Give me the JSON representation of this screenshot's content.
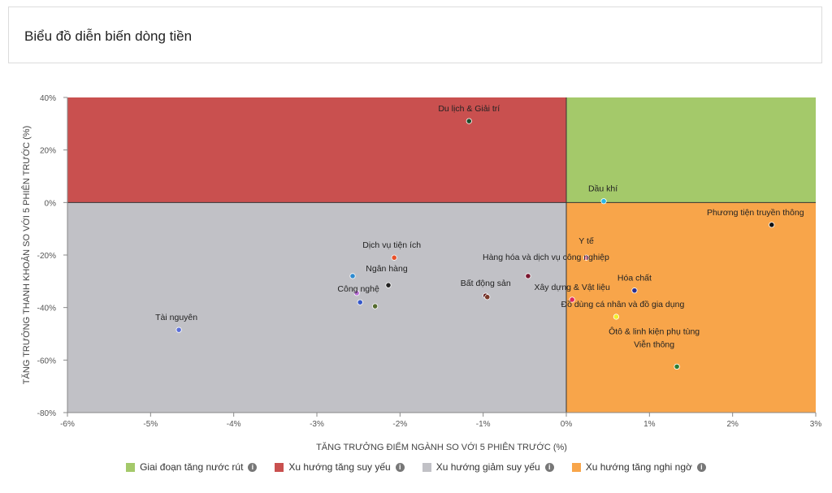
{
  "page": {
    "title": "Biểu đồ diễn biến dòng tiền"
  },
  "colors": {
    "q_top_right": "#a4c96a",
    "q_top_left": "#c9504f",
    "q_bottom_left": "#c1c1c6",
    "q_bottom_right": "#f8a54a"
  },
  "legend": [
    {
      "label": "Giai đoạn tăng nước rút",
      "color": "#a4c96a",
      "icon": "info-icon"
    },
    {
      "label": "Xu hướng tăng suy yếu",
      "color": "#c9504f",
      "icon": "info-icon"
    },
    {
      "label": "Xu hướng giảm suy yếu",
      "color": "#c1c1c6",
      "icon": "info-icon"
    },
    {
      "label": "Xu hướng tăng nghi ngờ",
      "color": "#f8a54a",
      "icon": "info-icon"
    }
  ],
  "chart_data": {
    "type": "scatter",
    "xlabel": "TĂNG TRƯỞNG ĐIỂM NGÀNH SO VỚI 5 PHIÊN TRƯỚC (%)",
    "ylabel": "TĂNG TRƯỞNG THANH KHOẢN SO VỚI 5 PHIÊN TRƯỚC (%)",
    "xlim": [
      -6,
      3
    ],
    "ylim": [
      -80,
      40
    ],
    "xticks": [
      -6,
      -5,
      -4,
      -3,
      -2,
      -1,
      0,
      1,
      2,
      3
    ],
    "yticks": [
      -80,
      -60,
      -40,
      -20,
      0,
      20,
      40
    ],
    "xtick_labels": [
      "-6%",
      "-5%",
      "-4%",
      "-3%",
      "-2%",
      "-1%",
      "0%",
      "1%",
      "2%",
      "3%"
    ],
    "ytick_labels": [
      "-80%",
      "-60%",
      "-40%",
      "-20%",
      "0%",
      "20%",
      "40%"
    ],
    "grid": false,
    "legend_position": "bottom",
    "points": [
      {
        "label": "Du lịch & Giải trí",
        "x": -1.17,
        "y": 31,
        "color": "#1b4d2b"
      },
      {
        "label": "Dầu khí",
        "x": 0.45,
        "y": 0.5,
        "color": "#29b6e8"
      },
      {
        "label": "Phương tiện truyền thông",
        "x": 2.47,
        "y": -8.5,
        "color": "#111111"
      },
      {
        "label": "Y tế",
        "x": 0.24,
        "y": -21,
        "color": "#f08fb0"
      },
      {
        "label": "Dịch vụ tiện ích",
        "x": -2.07,
        "y": -21,
        "color": "#e8512a"
      },
      {
        "label": "Hàng hóa và dịch vụ công nghiệp",
        "x": -0.46,
        "y": -28,
        "color": "#7a1730"
      },
      {
        "label": "Hóa chất",
        "x": 0.82,
        "y": -33.5,
        "color": "#2a2f8f"
      },
      {
        "label": "Ngân hàng",
        "x": -2.14,
        "y": -31.5,
        "color": "#222222"
      },
      {
        "label": "Bất động sản",
        "x": -0.97,
        "y": -35.5,
        "color": "#5a1010"
      },
      {
        "label": "Xây dựng & Vật liệu",
        "x": 0.07,
        "y": -37,
        "color": "#e0285a"
      },
      {
        "label": "Công nghệ",
        "x": -2.52,
        "y": -34.5,
        "color": "#b86fd6"
      },
      {
        "label": "Đồ dùng cá nhân và đồ gia dụng",
        "x": 0.6,
        "y": -43.5,
        "color": "#f2ef2a"
      },
      {
        "label": "Tài nguyên",
        "x": -4.66,
        "y": -48.5,
        "color": "#5b6fd8"
      },
      {
        "label": "Ôtô & linh kiện phụ tùng",
        "x": 1.33,
        "y": -62.5,
        "color": "#2e7d32"
      },
      {
        "label": "Viễn thông",
        "x": 1.33,
        "y": -62.5,
        "color": "#2e7d32"
      },
      {
        "label": "",
        "x": -2.57,
        "y": -28,
        "color": "#2e8bd0"
      },
      {
        "label": "",
        "x": -2.48,
        "y": -38,
        "color": "#3557c8"
      },
      {
        "label": "",
        "x": -2.3,
        "y": -39.5,
        "color": "#556b2f"
      },
      {
        "label": "",
        "x": -0.95,
        "y": -36,
        "color": "#7a3a2a"
      }
    ]
  }
}
